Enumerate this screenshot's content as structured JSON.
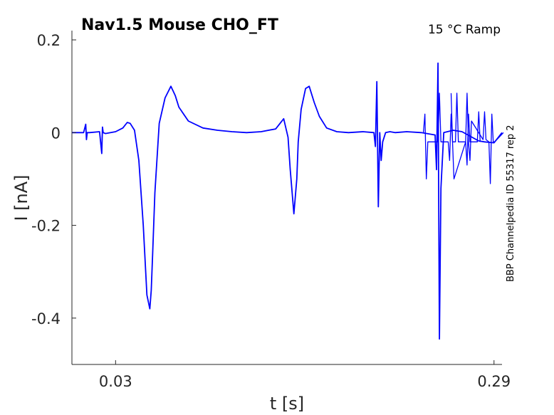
{
  "chart_data": {
    "type": "line",
    "title": "Nav1.5  Mouse  CHO_FT",
    "subtitle": "15 °C  Ramp",
    "side_label": "BBP Channelpedia ID 55317 rep 2",
    "xlabel": "t [s]",
    "ylabel": "I [nA]",
    "xlim": [
      0.0,
      0.2955
    ],
    "ylim": [
      -0.5,
      0.22
    ],
    "x_ticks": [
      0.03,
      0.29
    ],
    "x_tick_labels": [
      "0.03",
      "0.29"
    ],
    "y_ticks": [
      0.2,
      0,
      -0.2,
      -0.4
    ],
    "y_tick_labels": [
      "0.2",
      "0",
      "-0.2",
      "-0.4"
    ],
    "grid": false,
    "line_color": "#0000ff",
    "series": [
      {
        "x": [
          0.0,
          0.008,
          0.0095,
          0.01,
          0.0105,
          0.012,
          0.019,
          0.0205,
          0.021,
          0.0215,
          0.023,
          0.03,
          0.035,
          0.038,
          0.04,
          0.043,
          0.046,
          0.049,
          0.0515,
          0.0535,
          0.0545,
          0.0555,
          0.057,
          0.06,
          0.064,
          0.068,
          0.071,
          0.0735,
          0.08,
          0.09,
          0.1,
          0.11,
          0.12,
          0.13,
          0.14,
          0.1455,
          0.1485,
          0.15,
          0.1525,
          0.1545,
          0.1555,
          0.1575,
          0.1605,
          0.163,
          0.1665,
          0.17,
          0.175,
          0.182,
          0.19,
          0.2,
          0.2075,
          0.2085,
          0.2095,
          0.2105,
          0.2115,
          0.2125,
          0.2135,
          0.2155,
          0.2185,
          0.222,
          0.23,
          0.24,
          0.2495,
          0.2505,
          0.2515,
          0.2525,
          0.2535,
          0.2555,
          0.262,
          0.268,
          0.2795,
          0.2835,
          0.29,
          0.2955
        ],
        "y": [
          0.0,
          0.0,
          0.018,
          -0.015,
          0.0,
          0.0,
          0.002,
          -0.045,
          0.012,
          0.0,
          -0.002,
          0.002,
          0.01,
          0.022,
          0.02,
          0.005,
          -0.06,
          -0.2,
          -0.35,
          -0.38,
          -0.34,
          -0.26,
          -0.13,
          0.02,
          0.075,
          0.1,
          0.08,
          0.055,
          0.025,
          0.01,
          0.005,
          0.002,
          0.0,
          0.002,
          0.008,
          0.03,
          -0.01,
          -0.08,
          -0.175,
          -0.1,
          -0.02,
          0.05,
          0.095,
          0.1,
          0.065,
          0.035,
          0.01,
          0.002,
          0.0,
          0.002,
          0.0,
          -0.03,
          0.11,
          -0.16,
          0.0,
          -0.06,
          -0.02,
          0.0,
          0.002,
          0.0,
          0.002,
          0.0,
          -0.005,
          -0.08,
          0.15,
          -0.445,
          -0.12,
          0.0,
          0.005,
          0.002,
          -0.018,
          -0.02,
          -0.022,
          0.0
        ]
      },
      {
        "x": [
          0.2605,
          0.2615,
          0.2625,
          0.2705,
          0.2715,
          0.2725,
          0.2735,
          0.2745,
          0.2825,
          0.2835,
          0.2845,
          0.2865,
          0.2875,
          0.2885,
          0.2895,
          0.2905,
          0.2965
        ],
        "y": [
          0.085,
          -0.02,
          -0.1,
          -0.02,
          0.085,
          -0.022,
          -0.06,
          0.025,
          -0.015,
          0.045,
          -0.015,
          -0.02,
          -0.11,
          0.04,
          -0.02,
          -0.02,
          0.0
        ]
      },
      {
        "x": [
          0.2415,
          0.2425,
          0.2435,
          0.2445,
          0.2515,
          0.2525,
          0.2535,
          0.2545,
          0.2585,
          0.2595,
          0.2605,
          0.2615,
          0.2635,
          0.2645,
          0.2655,
          0.2665,
          0.2705,
          0.2715,
          0.2725,
          0.2735,
          0.2785,
          0.2795,
          0.2805
        ],
        "y": [
          0.0,
          0.04,
          -0.1,
          -0.02,
          -0.02,
          0.085,
          -0.02,
          -0.02,
          -0.02,
          -0.06,
          0.04,
          -0.02,
          -0.02,
          0.085,
          -0.02,
          -0.02,
          -0.02,
          -0.07,
          0.04,
          -0.02,
          -0.02,
          0.045,
          -0.02
        ]
      }
    ]
  }
}
